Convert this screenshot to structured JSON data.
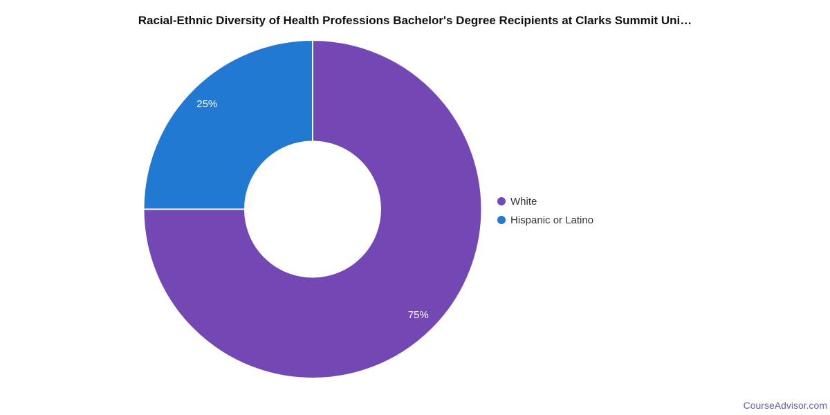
{
  "watermark": "CourseAdvisor.com",
  "watermark_color": "#6d5cb5",
  "chart_data": {
    "type": "pie",
    "subtype": "donut",
    "title": "Racial-Ethnic Diversity of Health Professions Bachelor's Degree Recipients at Clarks Summit Uni…",
    "categories": [
      "White",
      "Hispanic or Latino"
    ],
    "values": [
      75,
      25
    ],
    "labels": [
      "75%",
      "25%"
    ],
    "colors": [
      "#7347b4",
      "#2179d1"
    ],
    "start_angle": "top",
    "direction": "clockwise",
    "inner_radius_ratio": 0.4,
    "legend_position": "right",
    "data_label_color": "#ffffff",
    "slice_border_color": "#ffffff"
  }
}
